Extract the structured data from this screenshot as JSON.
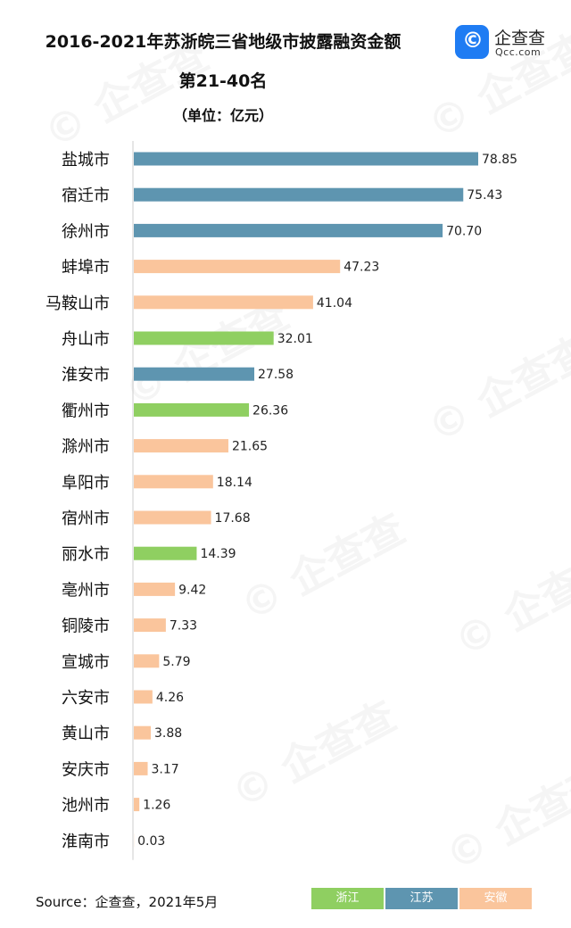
{
  "header": {
    "title": "2016-2021年苏浙皖三省地级市披露融资金额",
    "subtitle": "第21-40名",
    "unit": "（单位：亿元）"
  },
  "logo": {
    "icon": "qcc-logo-icon",
    "name": "企查查",
    "domain": "Qcc.com"
  },
  "source": "Source：企查查，2021年5月",
  "legend": [
    {
      "label": "浙江",
      "color": "#8fcf61"
    },
    {
      "label": "江苏",
      "color": "#5e95b0"
    },
    {
      "label": "安徽",
      "color": "#fac59c"
    }
  ],
  "chart_data": {
    "type": "bar",
    "orientation": "horizontal",
    "title": "2016-2021年苏浙皖三省地级市披露融资金额",
    "subtitle": "第21-40名",
    "unit": "（单位：亿元）",
    "categories": [
      "盐城市",
      "宿迁市",
      "徐州市",
      "蚌埠市",
      "马鞍山市",
      "舟山市",
      "淮安市",
      "衢州市",
      "滁州市",
      "阜阳市",
      "宿州市",
      "丽水市",
      "亳州市",
      "铜陵市",
      "宣城市",
      "六安市",
      "黄山市",
      "安庆市",
      "池州市",
      "淮南市"
    ],
    "values": [
      78.85,
      75.43,
      70.7,
      47.23,
      41.04,
      32.01,
      27.58,
      26.36,
      21.65,
      18.14,
      17.68,
      14.39,
      9.42,
      7.33,
      5.79,
      4.26,
      3.88,
      3.17,
      1.26,
      0.03
    ],
    "value_labels": [
      "78.85",
      "75.43",
      "70.70",
      "47.23",
      "41.04",
      "32.01",
      "27.58",
      "26.36",
      "21.65",
      "18.14",
      "17.68",
      "14.39",
      "9.42",
      "7.33",
      "5.79",
      "4.26",
      "3.88",
      "3.17",
      "1.26",
      "0.03"
    ],
    "groups": [
      "江苏",
      "江苏",
      "江苏",
      "安徽",
      "安徽",
      "浙江",
      "江苏",
      "浙江",
      "安徽",
      "安徽",
      "安徽",
      "浙江",
      "安徽",
      "安徽",
      "安徽",
      "安徽",
      "安徽",
      "安徽",
      "安徽",
      "安徽"
    ],
    "group_colors": {
      "浙江": "#8fcf61",
      "江苏": "#5e95b0",
      "安徽": "#fac59c"
    },
    "xlim": [
      0,
      80
    ],
    "grid": false,
    "legend_position": "bottom-right"
  }
}
